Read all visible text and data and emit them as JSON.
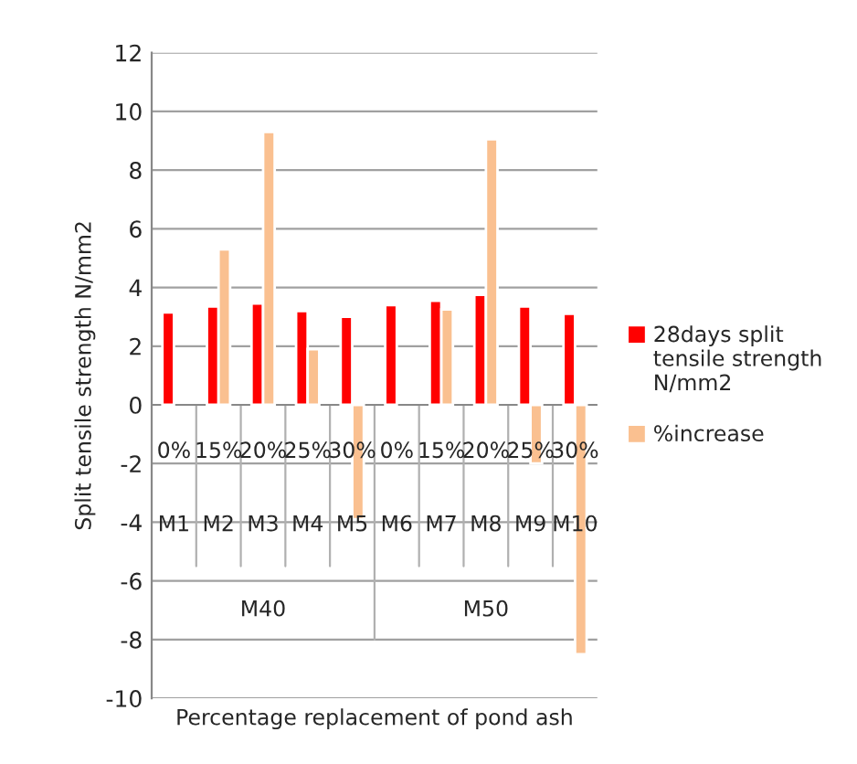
{
  "chart_data": {
    "type": "bar",
    "xlabel": "Percentage replacement of pond ash",
    "ylabel": "Split tensile strength N/mm2",
    "categories": [
      "0%",
      "15%",
      "20%",
      "25%",
      "30%",
      "0%",
      "15%",
      "20%",
      "25%",
      "30%"
    ],
    "series": [
      {
        "name": "28days split tensile strength N/mm2",
        "color": "#ff0000",
        "values": [
          3.15,
          3.35,
          3.45,
          3.2,
          3.0,
          3.4,
          3.55,
          3.75,
          3.35,
          3.1
        ]
      },
      {
        "name": "%increase",
        "color": "#fac090",
        "values": [
          null,
          5.3,
          9.3,
          1.9,
          -3.9,
          null,
          3.25,
          9.05,
          -2.0,
          -8.5
        ]
      }
    ],
    "annotations": [
      "M1",
      "M2",
      "M3",
      "M4",
      "M5",
      "M6",
      "M7",
      "M8",
      "M9",
      "M10",
      "M40",
      "M50"
    ],
    "ylim": [
      -10,
      12
    ],
    "yticks": [
      -10,
      -8,
      -6,
      -4,
      -2,
      0,
      2,
      4,
      6,
      8,
      10,
      12
    ],
    "grid": "y",
    "legend": "right"
  }
}
